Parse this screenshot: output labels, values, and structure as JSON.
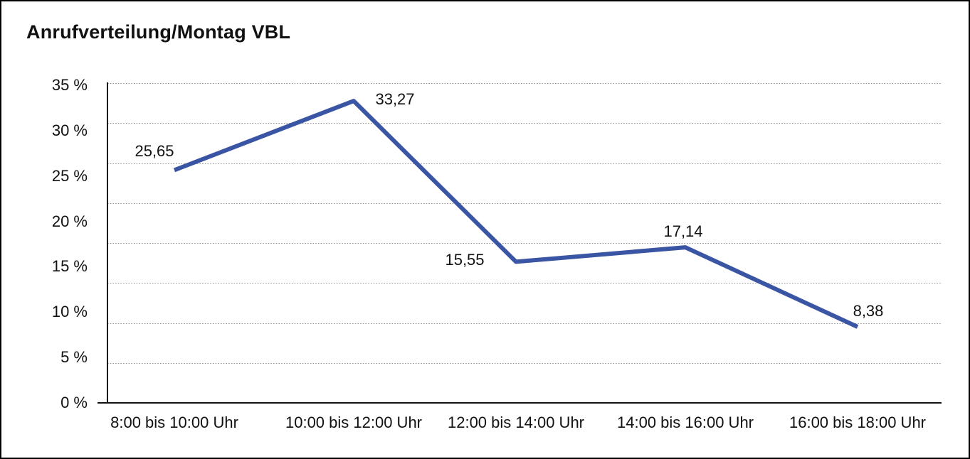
{
  "chart_data": {
    "type": "line",
    "title": "Anrufverteilung/Montag VBL",
    "categories": [
      "8:00 bis 10:00 Uhr",
      "10:00 bis 12:00 Uhr",
      "12:00 bis 14:00 Uhr",
      "14:00 bis 16:00 Uhr",
      "16:00 bis 18:00 Uhr"
    ],
    "values": [
      25.65,
      33.27,
      15.55,
      17.14,
      8.38
    ],
    "value_labels": [
      "25,65",
      "33,27",
      "15,55",
      "17,14",
      "8,38"
    ],
    "xlabel": "",
    "ylabel": "",
    "ylim": [
      0,
      35
    ],
    "y_ticks": [
      0,
      5,
      10,
      15,
      20,
      25,
      30,
      35
    ],
    "y_tick_labels": [
      "0 %",
      "5 %",
      "10 %",
      "15 %",
      "20 %",
      "25 %",
      "30 %",
      "35 %"
    ],
    "grid": "horizontal-dotted",
    "legend": "none",
    "line_color": "#3A55A3",
    "axis_color": "#111111",
    "grid_color": "#8C8C8C",
    "text_color": "#111111",
    "background": "#FFFFFF"
  }
}
